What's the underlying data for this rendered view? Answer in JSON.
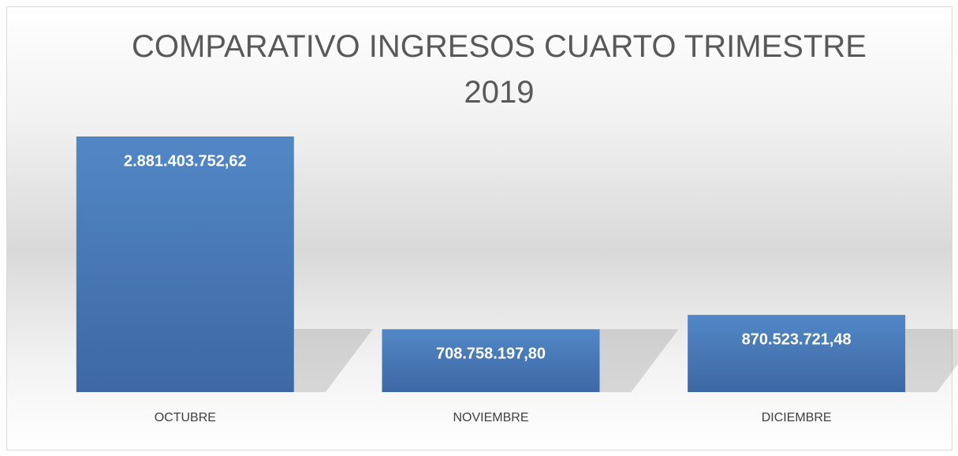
{
  "chart_data": {
    "type": "bar",
    "title": "COMPARATIVO INGRESOS CUARTO TRIMESTRE 2019",
    "categories": [
      "OCTUBRE",
      "NOVIEMBRE",
      "DICIEMBRE"
    ],
    "values": [
      2881403752.62,
      708758197.8,
      870523721.48
    ],
    "value_labels": [
      "2.881.403.752,62",
      "708.758.197,80",
      "870.523.721,48"
    ],
    "color": "#4a7ab7"
  }
}
